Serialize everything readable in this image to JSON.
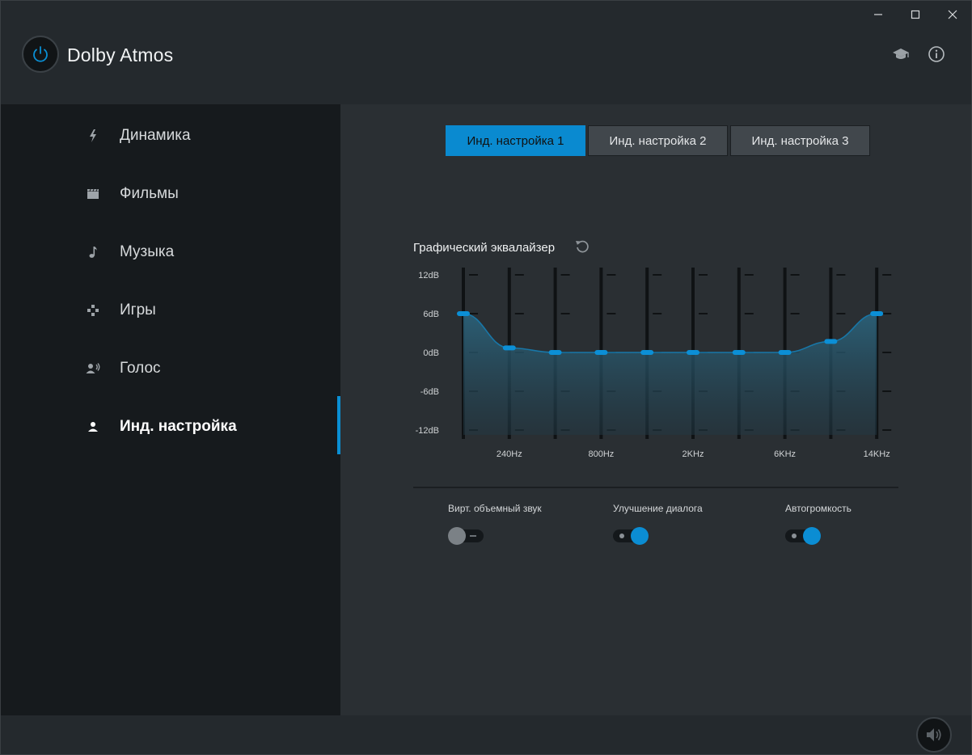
{
  "app": {
    "title": "Dolby Atmos"
  },
  "window_controls": [
    "minimize-icon",
    "maximize-icon",
    "close-icon"
  ],
  "header_icons": [
    "graduation-cap-icon",
    "info-icon"
  ],
  "sidebar": {
    "items": [
      {
        "label": "Динамика",
        "icon": "lightning-icon"
      },
      {
        "label": "Фильмы",
        "icon": "clapperboard-icon"
      },
      {
        "label": "Музыка",
        "icon": "music-note-icon"
      },
      {
        "label": "Игры",
        "icon": "gamepad-icon"
      },
      {
        "label": "Голос",
        "icon": "voice-icon"
      },
      {
        "label": "Инд. настройка",
        "icon": "person-icon",
        "active": true
      }
    ]
  },
  "tabs": [
    {
      "label": "Инд. настройка 1",
      "active": true
    },
    {
      "label": "Инд. настройка 2",
      "active": false
    },
    {
      "label": "Инд. настройка 3",
      "active": false
    }
  ],
  "equalizer": {
    "title": "Графический эквалайзер",
    "reset_icon": "reset-icon",
    "db_labels": [
      "12dB",
      "6dB",
      "0dB",
      "-6dB",
      "-12dB"
    ],
    "freq_labels": [
      "240Hz",
      "800Hz",
      "2KHz",
      "6KHz",
      "14KHz"
    ],
    "band_gains_db": [
      6,
      0.7,
      0,
      0,
      0,
      0,
      0,
      0,
      1.7,
      6
    ]
  },
  "toggles": [
    {
      "label": "Вирт. объемный звук",
      "on": false
    },
    {
      "label": "Улучшение диалога",
      "on": true
    },
    {
      "label": "Автогромкость",
      "on": true
    }
  ],
  "colors": {
    "accent": "#0a8ad0",
    "sidebar_bg": "#161a1d",
    "main_bg": "#2a2f33"
  },
  "footer": {
    "icon": "speaker-icon"
  }
}
